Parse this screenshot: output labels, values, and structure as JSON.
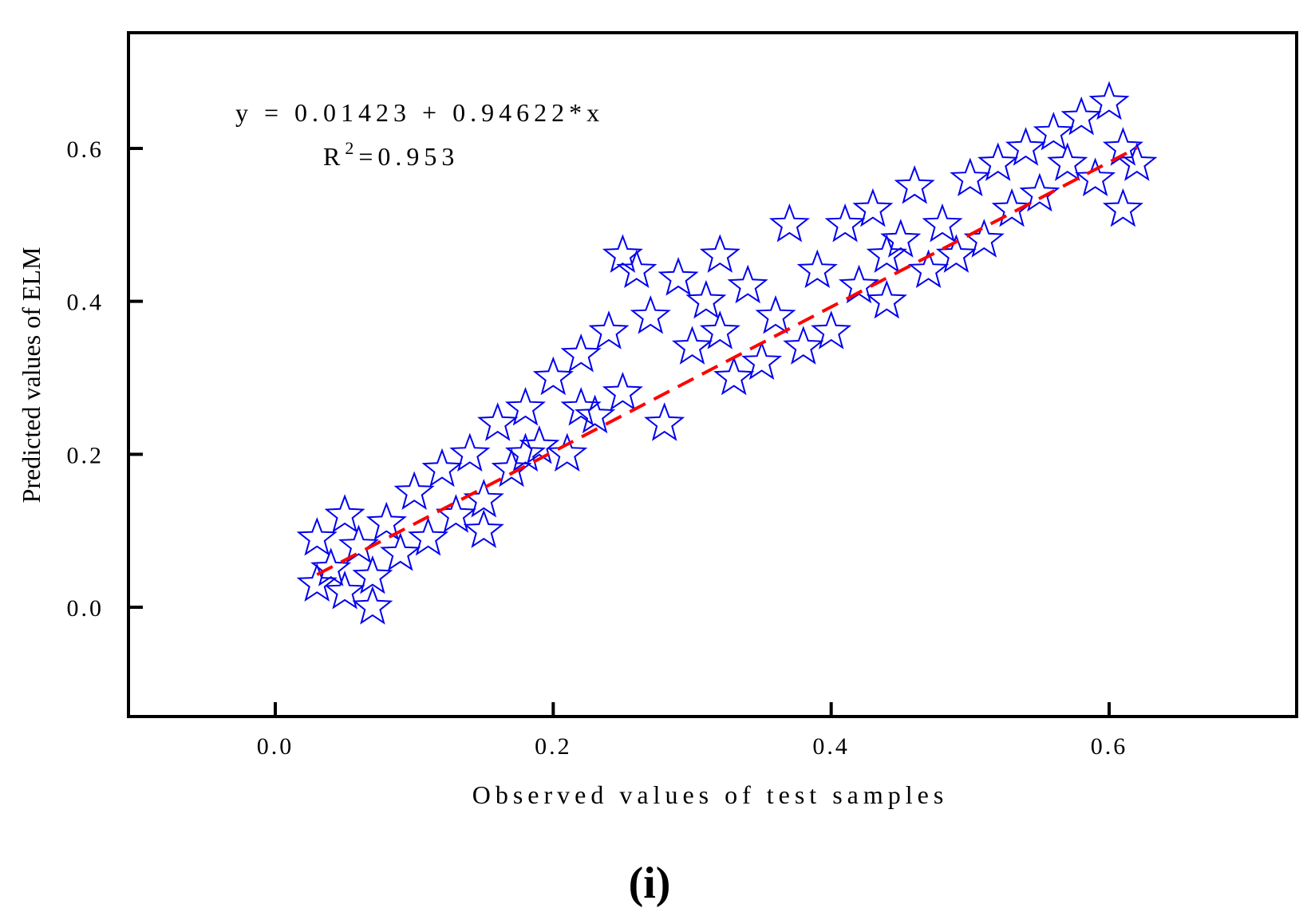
{
  "chart_data": {
    "type": "scatter",
    "xlabel": "Observed values of test samples",
    "ylabel": "Predicted values of ELM",
    "xlim": [
      -0.1,
      0.7
    ],
    "ylim": [
      -0.15,
      0.75
    ],
    "x_ticks": [
      "0.0",
      "0.2",
      "0.4",
      "0.6"
    ],
    "x_tick_values": [
      0.0,
      0.2,
      0.4,
      0.6
    ],
    "y_ticks": [
      "0.0",
      "0.2",
      "0.4",
      "0.6"
    ],
    "y_tick_values": [
      0.0,
      0.2,
      0.4,
      0.6
    ],
    "equation": "y = 0.01423 + 0.94622*x",
    "r2_label": "R",
    "r2_sup": "2",
    "r2_value": "=0.953",
    "panel_label": "(i)",
    "fit_line": {
      "intercept": 0.01423,
      "slope": 0.94622,
      "x_range": [
        0.03,
        0.62
      ]
    },
    "marker_color": "#0000ee",
    "fit_color": "#ff0000",
    "marker": "star",
    "points": [
      [
        0.03,
        0.09
      ],
      [
        0.04,
        0.05
      ],
      [
        0.05,
        0.02
      ],
      [
        0.06,
        0.08
      ],
      [
        0.07,
        0.04
      ],
      [
        0.08,
        0.11
      ],
      [
        0.09,
        0.07
      ],
      [
        0.05,
        0.12
      ],
      [
        0.03,
        0.03
      ],
      [
        0.07,
        0.0
      ],
      [
        0.1,
        0.15
      ],
      [
        0.11,
        0.09
      ],
      [
        0.12,
        0.18
      ],
      [
        0.13,
        0.12
      ],
      [
        0.14,
        0.2
      ],
      [
        0.15,
        0.14
      ],
      [
        0.16,
        0.24
      ],
      [
        0.17,
        0.18
      ],
      [
        0.18,
        0.26
      ],
      [
        0.19,
        0.21
      ],
      [
        0.2,
        0.3
      ],
      [
        0.21,
        0.2
      ],
      [
        0.22,
        0.33
      ],
      [
        0.23,
        0.25
      ],
      [
        0.24,
        0.36
      ],
      [
        0.25,
        0.28
      ],
      [
        0.26,
        0.44
      ],
      [
        0.25,
        0.46
      ],
      [
        0.27,
        0.38
      ],
      [
        0.28,
        0.24
      ],
      [
        0.29,
        0.43
      ],
      [
        0.3,
        0.34
      ],
      [
        0.31,
        0.4
      ],
      [
        0.32,
        0.46
      ],
      [
        0.33,
        0.3
      ],
      [
        0.34,
        0.42
      ],
      [
        0.35,
        0.32
      ],
      [
        0.36,
        0.38
      ],
      [
        0.37,
        0.5
      ],
      [
        0.38,
        0.34
      ],
      [
        0.39,
        0.44
      ],
      [
        0.4,
        0.36
      ],
      [
        0.41,
        0.5
      ],
      [
        0.42,
        0.42
      ],
      [
        0.43,
        0.52
      ],
      [
        0.44,
        0.4
      ],
      [
        0.45,
        0.48
      ],
      [
        0.46,
        0.55
      ],
      [
        0.47,
        0.44
      ],
      [
        0.48,
        0.5
      ],
      [
        0.49,
        0.46
      ],
      [
        0.5,
        0.56
      ],
      [
        0.51,
        0.48
      ],
      [
        0.52,
        0.58
      ],
      [
        0.53,
        0.52
      ],
      [
        0.54,
        0.6
      ],
      [
        0.55,
        0.54
      ],
      [
        0.56,
        0.62
      ],
      [
        0.57,
        0.58
      ],
      [
        0.58,
        0.64
      ],
      [
        0.59,
        0.56
      ],
      [
        0.6,
        0.66
      ],
      [
        0.61,
        0.6
      ],
      [
        0.62,
        0.58
      ],
      [
        0.61,
        0.52
      ],
      [
        0.15,
        0.1
      ],
      [
        0.18,
        0.2
      ],
      [
        0.22,
        0.26
      ],
      [
        0.32,
        0.36
      ],
      [
        0.44,
        0.46
      ]
    ]
  }
}
